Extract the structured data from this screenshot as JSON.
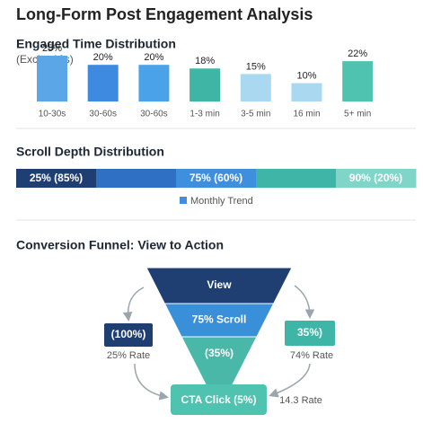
{
  "title": "Long-Form Post Engagement Analysis",
  "chart_data": {
    "type": "bar",
    "title": "Engaged Time Distribution",
    "subtitle": "(Excl. <10s)",
    "categories": [
      "10-30s",
      "30-60s",
      "30-60s",
      "1-3 min",
      "3-5 min",
      "16 min",
      "5+ min"
    ],
    "values": [
      25,
      20,
      20,
      18,
      15,
      10,
      22
    ],
    "value_labels": [
      "25%",
      "20%",
      "20%",
      "18%",
      "15%",
      "10%",
      "22%"
    ],
    "colors": [
      "#5aa6e6",
      "#3d8ae0",
      "#4aa3e8",
      "#3fb5a5",
      "#a9d8f0",
      "#a9d8f0",
      "#4fc3b0"
    ]
  },
  "scroll_depth": {
    "title": "Scroll Depth Distribution",
    "segments": [
      {
        "label": "25% (85%)",
        "color": "#1f3f73"
      },
      {
        "color": "#2f6fc4"
      },
      {
        "label": "75% (60%)",
        "color": "#3f8fdf"
      },
      {
        "color": "#3fb5a8"
      },
      {
        "label": "90% (20%)",
        "color": "#7fd6c8"
      }
    ],
    "legend": {
      "label": "Monthly Trend",
      "color": "#3f8fdf"
    }
  },
  "funnel": {
    "title": "Conversion Funnel: View to Action",
    "stages": [
      "View",
      "75% Scroll",
      "(35%)"
    ],
    "stage_colors": [
      "#1f3f73",
      "#3a8fd9",
      "#49b8a8"
    ],
    "cta": "CTA Click (5%)",
    "cta_color": "#4fc3b0",
    "left_box": "(100%)",
    "left_color": "#1f3f73",
    "left_rate": "25% Rate",
    "right_box": "35%)",
    "right_color": "#3fb5a8",
    "right_rate": "74% Rate",
    "bottom_rate": "14.3 Rate"
  }
}
